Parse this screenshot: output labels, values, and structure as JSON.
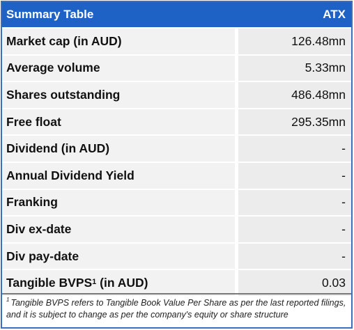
{
  "table": {
    "title": "Summary Table",
    "ticker": "ATX",
    "rows": [
      {
        "label": "Market cap (in AUD)",
        "value": "126.48mn"
      },
      {
        "label": "Average volume",
        "value": "5.33mn"
      },
      {
        "label": "Shares outstanding",
        "value": "486.48mn"
      },
      {
        "label": "Free float",
        "value": "295.35mn"
      },
      {
        "label": "Dividend (in AUD)",
        "value": "-"
      },
      {
        "label": "Annual Dividend Yield",
        "value": "-"
      },
      {
        "label": "Franking",
        "value": "-"
      },
      {
        "label": "Div ex-date",
        "value": "-"
      },
      {
        "label": "Div pay-date",
        "value": "-"
      },
      {
        "label_main": "Tangible BVPS",
        "label_sup": "1",
        "label_suffix": " (in AUD)",
        "value": "0.03"
      }
    ]
  },
  "footnote": {
    "marker": "1",
    "text": "Tangible BVPS refers to Tangible Book Value Per Share as per the last reported filings, and it is subject to change as per the company's equity or share structure"
  }
}
